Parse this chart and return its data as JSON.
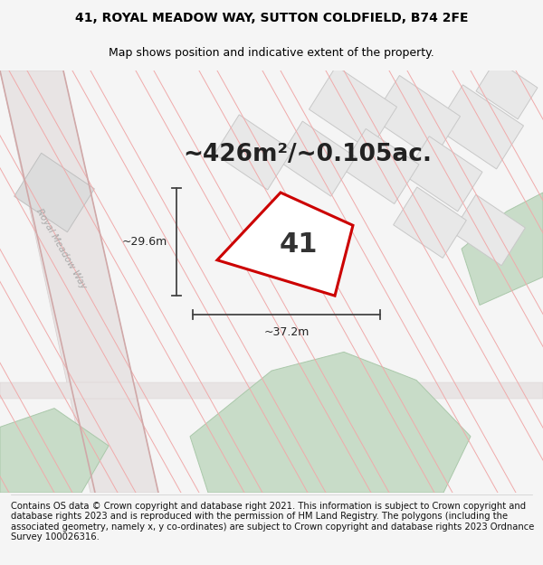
{
  "title_line1": "41, ROYAL MEADOW WAY, SUTTON COLDFIELD, B74 2FE",
  "title_line2": "Map shows position and indicative extent of the property.",
  "area_text": "~426m²/~0.105ac.",
  "plot_number": "41",
  "dim_width": "~37.2m",
  "dim_height": "~29.6m",
  "footer_text": "Contains OS data © Crown copyright and database right 2021. This information is subject to Crown copyright and database rights 2023 and is reproduced with the permission of HM Land Registry. The polygons (including the associated geometry, namely x, y co-ordinates) are subject to Crown copyright and database rights 2023 Ordnance Survey 100026316.",
  "bg_color": "#f5f5f5",
  "map_bg": "#f0eeee",
  "plot_edge_color": "#cc0000",
  "road_stroke": "#f0aaaa",
  "building_fill": "#e8e8e8",
  "building_edge": "#c8c8c8",
  "green_color": "#c8dcc8",
  "road_label_color": "#aaaaaa",
  "dim_line_color": "#444444",
  "title_fontsize": 10,
  "subtitle_fontsize": 9,
  "area_fontsize": 19,
  "number_fontsize": 22,
  "dim_fontsize": 9,
  "footer_fontsize": 7.2
}
